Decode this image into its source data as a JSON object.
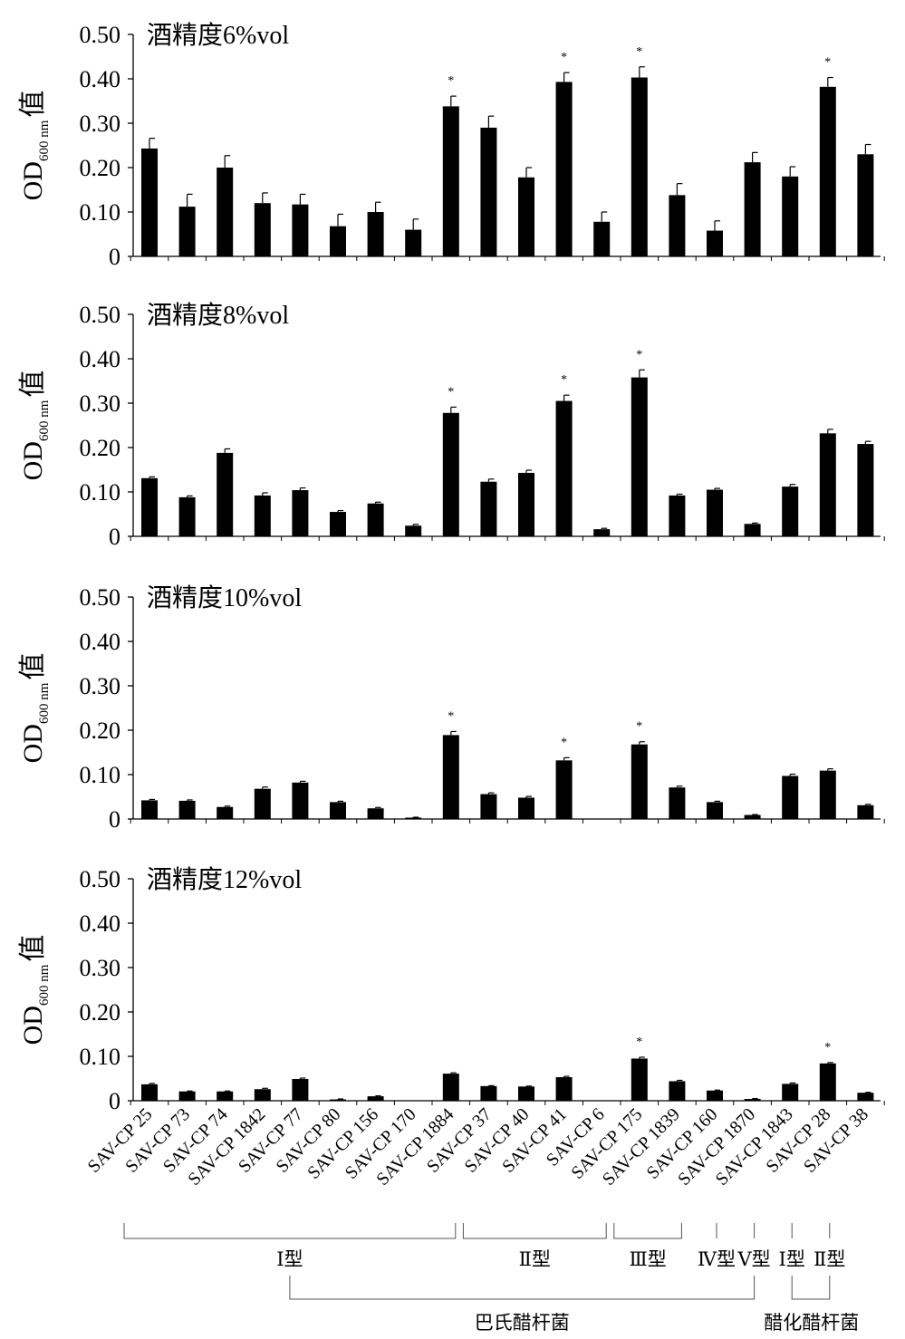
{
  "chart_data": {
    "type": "bar",
    "categories": [
      "SAV-CP 25",
      "SAV-CP 73",
      "SAV-CP 74",
      "SAV-CP 1842",
      "SAV-CP 77",
      "SAV-CP 80",
      "SAV-CP 156",
      "SAV-CP 170",
      "SAV-CP 1884",
      "SAV-CP 37",
      "SAV-CP 40",
      "SAV-CP 41",
      "SAV-CP 6",
      "SAV-CP 175",
      "SAV-CP 1839",
      "SAV-CP 160",
      "SAV-CP 1870",
      "SAV-CP 1843",
      "SAV-CP 28",
      "SAV-CP 38"
    ],
    "ylabel": {
      "main": "OD",
      "sub": "600 nm",
      "suffix": "值"
    },
    "ylim": [
      0,
      0.5
    ],
    "yticks": [
      "0",
      "0.10",
      "0.20",
      "0.30",
      "0.40",
      "0.50"
    ],
    "significance_marker": "*",
    "panels": [
      {
        "title": "酒精度6%vol",
        "values": [
          0.243,
          0.112,
          0.2,
          0.12,
          0.117,
          0.068,
          0.1,
          0.06,
          0.338,
          0.29,
          0.178,
          0.393,
          0.078,
          0.403,
          0.138,
          0.058,
          0.212,
          0.18,
          0.382,
          0.23
        ],
        "errors": [
          0.023,
          0.028,
          0.027,
          0.023,
          0.023,
          0.027,
          0.022,
          0.024,
          0.023,
          0.026,
          0.022,
          0.021,
          0.022,
          0.024,
          0.026,
          0.022,
          0.022,
          0.022,
          0.021,
          0.022
        ],
        "significant": [
          8,
          11,
          13,
          18
        ]
      },
      {
        "title": "酒精度8%vol",
        "values": [
          0.131,
          0.088,
          0.188,
          0.092,
          0.104,
          0.055,
          0.074,
          0.024,
          0.278,
          0.123,
          0.143,
          0.305,
          0.016,
          0.358,
          0.092,
          0.105,
          0.028,
          0.112,
          0.232,
          0.208
        ],
        "errors": [
          0.003,
          0.003,
          0.009,
          0.006,
          0.005,
          0.003,
          0.003,
          0.003,
          0.013,
          0.006,
          0.006,
          0.013,
          0.002,
          0.017,
          0.003,
          0.003,
          0.002,
          0.005,
          0.009,
          0.006
        ],
        "significant": [
          8,
          11,
          13
        ]
      },
      {
        "title": "酒精度10%vol",
        "values": [
          0.042,
          0.041,
          0.027,
          0.068,
          0.082,
          0.038,
          0.024,
          0.003,
          0.189,
          0.056,
          0.048,
          0.132,
          0.0,
          0.168,
          0.071,
          0.038,
          0.009,
          0.097,
          0.109,
          0.031
        ],
        "errors": [
          0.002,
          0.002,
          0.002,
          0.004,
          0.003,
          0.002,
          0.002,
          0.001,
          0.008,
          0.003,
          0.003,
          0.006,
          0.0,
          0.006,
          0.003,
          0.002,
          0.001,
          0.004,
          0.004,
          0.002
        ],
        "significant": [
          8,
          11,
          13
        ]
      },
      {
        "title": "酒精度12%vol",
        "values": [
          0.037,
          0.021,
          0.021,
          0.026,
          0.049,
          0.003,
          0.01,
          0.0,
          0.061,
          0.033,
          0.032,
          0.053,
          0.0,
          0.095,
          0.044,
          0.023,
          0.004,
          0.038,
          0.084,
          0.018
        ],
        "errors": [
          0.002,
          0.001,
          0.001,
          0.002,
          0.002,
          0.001,
          0.001,
          0.0,
          0.002,
          0.001,
          0.001,
          0.002,
          0.0,
          0.003,
          0.002,
          0.001,
          0.001,
          0.002,
          0.002,
          0.001
        ],
        "significant": [
          13,
          18
        ]
      }
    ],
    "type_groups": [
      {
        "label": "Ⅰ型",
        "from": 0,
        "to": 8
      },
      {
        "label": "Ⅱ型",
        "from": 9,
        "to": 12
      },
      {
        "label": "Ⅲ型",
        "from": 13,
        "to": 14
      },
      {
        "label": "Ⅳ型",
        "from": 15,
        "to": 15
      },
      {
        "label": "Ⅴ型",
        "from": 16,
        "to": 16
      },
      {
        "label": "Ⅰ型",
        "from": 17,
        "to": 17
      },
      {
        "label": "Ⅱ型",
        "from": 18,
        "to": 18
      }
    ],
    "species_groups": [
      {
        "label": "巴氏醋杆菌",
        "types": [
          0,
          4
        ]
      },
      {
        "label": "醋化醋杆菌",
        "types": [
          5,
          6
        ]
      }
    ]
  }
}
